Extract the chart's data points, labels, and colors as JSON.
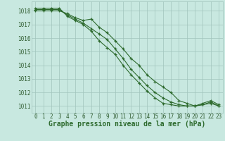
{
  "title": "Graphe pression niveau de la mer (hPa)",
  "x": [
    0,
    1,
    2,
    3,
    4,
    5,
    6,
    7,
    8,
    9,
    10,
    11,
    12,
    13,
    14,
    15,
    16,
    17,
    18,
    19,
    20,
    21,
    22,
    23
  ],
  "line1": [
    1018.0,
    1018.0,
    1018.0,
    1018.0,
    1017.8,
    1017.5,
    1017.3,
    1017.4,
    1016.8,
    1016.4,
    1015.8,
    1015.2,
    1014.5,
    1014.0,
    1013.3,
    1012.8,
    1012.4,
    1012.0,
    1011.4,
    1011.2,
    1011.0,
    1011.2,
    1011.4,
    1011.1
  ],
  "line2": [
    1018.1,
    1018.1,
    1018.1,
    1018.1,
    1017.7,
    1017.4,
    1017.1,
    1016.7,
    1016.3,
    1015.9,
    1015.2,
    1014.5,
    1013.7,
    1013.1,
    1012.5,
    1012.0,
    1011.6,
    1011.3,
    1011.1,
    1011.0,
    1011.0,
    1011.1,
    1011.3,
    1011.0
  ],
  "line3": [
    1018.2,
    1018.2,
    1018.2,
    1018.2,
    1017.6,
    1017.3,
    1017.0,
    1016.5,
    1015.8,
    1015.3,
    1014.8,
    1014.0,
    1013.3,
    1012.7,
    1012.1,
    1011.6,
    1011.2,
    1011.1,
    1011.0,
    1011.0,
    1011.0,
    1011.1,
    1011.2,
    1011.0
  ],
  "line_color": "#2d6a2d",
  "bg_color": "#c8e8e0",
  "grid_color": "#a0c4bc",
  "ylim": [
    1010.5,
    1018.7
  ],
  "yticks": [
    1011,
    1012,
    1013,
    1014,
    1015,
    1016,
    1017,
    1018
  ],
  "xlim": [
    -0.5,
    23.5
  ],
  "xticks": [
    0,
    1,
    2,
    3,
    4,
    5,
    6,
    7,
    8,
    9,
    10,
    11,
    12,
    13,
    14,
    15,
    16,
    17,
    18,
    19,
    20,
    21,
    22,
    23
  ],
  "marker": "+",
  "markersize": 3.5,
  "linewidth": 0.8,
  "title_fontsize": 7.0,
  "tick_fontsize": 5.5,
  "title_color": "#2d6a2d",
  "tick_color": "#2d5a2d",
  "fig_width": 3.2,
  "fig_height": 2.0,
  "dpi": 100
}
